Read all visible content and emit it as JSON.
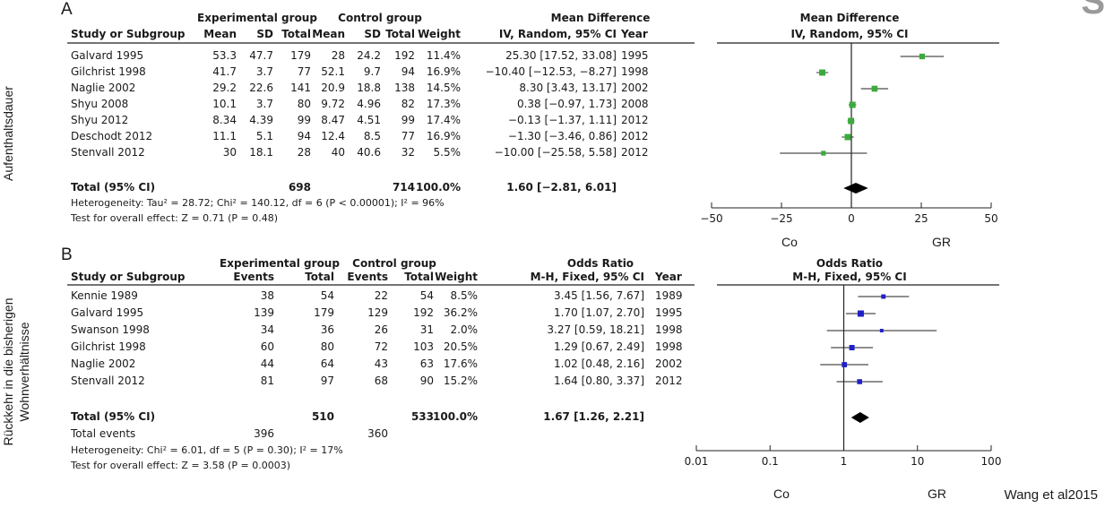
{
  "side_labels": {
    "a": "Aufenthaltsdauer",
    "b_line1": "Rückkehr in die bisherigen",
    "b_line2": "Wohnverhältnisse"
  },
  "citation": "Wang et al2015",
  "corner_glyph": "S",
  "colors": {
    "a_marker": "#3cab3c",
    "b_marker": "#2020c8",
    "line": "#222222"
  },
  "chart_data": [
    {
      "type": "forest",
      "panel": "A",
      "group_headers": {
        "experimental": "Experimental group",
        "control": "Control group",
        "effect": "Mean Difference",
        "plot": "Mean Difference"
      },
      "columns": [
        "Study or Subgroup",
        "Mean",
        "SD",
        "Total",
        "Mean",
        "SD",
        "Total",
        "Weight",
        "IV, Random, 95% CI",
        "Year"
      ],
      "plot_subheader": "IV, Random, 95% CI",
      "rows": [
        {
          "study": "Galvard 1995",
          "e_mean": "53.3",
          "e_sd": "47.7",
          "e_total": "179",
          "c_mean": "28",
          "c_sd": "24.2",
          "c_total": "192",
          "weight": "11.4%",
          "ci_text": "25.30 [17.52, 33.08]",
          "year": "1995",
          "est": 25.3,
          "lo": 17.52,
          "hi": 33.08
        },
        {
          "study": "Gilchrist 1998",
          "e_mean": "41.7",
          "e_sd": "3.7",
          "e_total": "77",
          "c_mean": "52.1",
          "c_sd": "9.7",
          "c_total": "94",
          "weight": "16.9%",
          "ci_text": "−10.40 [−12.53, −8.27]",
          "year": "1998",
          "est": -10.4,
          "lo": -12.53,
          "hi": -8.27
        },
        {
          "study": "Naglie 2002",
          "e_mean": "29.2",
          "e_sd": "22.6",
          "e_total": "141",
          "c_mean": "20.9",
          "c_sd": "18.8",
          "c_total": "138",
          "weight": "14.5%",
          "ci_text": "8.30 [3.43, 13.17]",
          "year": "2002",
          "est": 8.3,
          "lo": 3.43,
          "hi": 13.17
        },
        {
          "study": "Shyu 2008",
          "e_mean": "10.1",
          "e_sd": "3.7",
          "e_total": "80",
          "c_mean": "9.72",
          "c_sd": "4.96",
          "c_total": "82",
          "weight": "17.3%",
          "ci_text": "0.38 [−0.97, 1.73]",
          "year": "2008",
          "est": 0.38,
          "lo": -0.97,
          "hi": 1.73
        },
        {
          "study": "Shyu 2012",
          "e_mean": "8.34",
          "e_sd": "4.39",
          "e_total": "99",
          "c_mean": "8.47",
          "c_sd": "4.51",
          "c_total": "99",
          "weight": "17.4%",
          "ci_text": "−0.13 [−1.37, 1.11]",
          "year": "2012",
          "est": -0.13,
          "lo": -1.37,
          "hi": 1.11
        },
        {
          "study": "Deschodt 2012",
          "e_mean": "11.1",
          "e_sd": "5.1",
          "e_total": "94",
          "c_mean": "12.4",
          "c_sd": "8.5",
          "c_total": "77",
          "weight": "16.9%",
          "ci_text": "−1.30 [−3.46, 0.86]",
          "year": "2012",
          "est": -1.3,
          "lo": -3.46,
          "hi": 0.86
        },
        {
          "study": "Stenvall 2012",
          "e_mean": "30",
          "e_sd": "18.1",
          "e_total": "28",
          "c_mean": "40",
          "c_sd": "40.6",
          "c_total": "32",
          "weight": "5.5%",
          "ci_text": "−10.00 [−25.58, 5.58]",
          "year": "2012",
          "est": -10.0,
          "lo": -25.58,
          "hi": 5.58
        }
      ],
      "total": {
        "label": "Total (95% CI)",
        "e_total": "698",
        "c_total": "714",
        "weight": "100.0%",
        "ci_text": "1.60 [−2.81, 6.01]",
        "est": 1.6,
        "lo": -2.81,
        "hi": 6.01
      },
      "notes": [
        "Heterogeneity: Tau² = 28.72; Chi² = 140.12, df = 6 (P < 0.00001); I² = 96%",
        "Test for overall effect: Z = 0.71 (P = 0.48)"
      ],
      "axis": {
        "scale": "linear",
        "ticks": [
          -50,
          -25,
          0,
          25,
          50
        ],
        "tick_labels": [
          "−50",
          "−25",
          "0",
          "25",
          "50"
        ],
        "range": [
          -50,
          50
        ]
      },
      "direction_labels": {
        "left": "Co",
        "right": "GR"
      }
    },
    {
      "type": "forest",
      "panel": "B",
      "group_headers": {
        "experimental": "Experimental group",
        "control": "Control group",
        "effect": "Odds Ratio",
        "plot": "Odds Ratio"
      },
      "columns": [
        "Study or Subgroup",
        "Events",
        "Total",
        "Events",
        "Total",
        "Weight",
        "M-H, Fixed, 95% CI",
        "Year"
      ],
      "plot_subheader": "M-H, Fixed, 95% CI",
      "rows": [
        {
          "study": "Kennie 1989",
          "e_events": "38",
          "e_total": "54",
          "c_events": "22",
          "c_total": "54",
          "weight": "8.5%",
          "ci_text": "3.45 [1.56, 7.67]",
          "year": "1989",
          "est": 3.45,
          "lo": 1.56,
          "hi": 7.67
        },
        {
          "study": "Galvard 1995",
          "e_events": "139",
          "e_total": "179",
          "c_events": "129",
          "c_total": "192",
          "weight": "36.2%",
          "ci_text": "1.70 [1.07, 2.70]",
          "year": "1995",
          "est": 1.7,
          "lo": 1.07,
          "hi": 2.7
        },
        {
          "study": "Swanson 1998",
          "e_events": "34",
          "e_total": "36",
          "c_events": "26",
          "c_total": "31",
          "weight": "2.0%",
          "ci_text": "3.27 [0.59, 18.21]",
          "year": "1998",
          "est": 3.27,
          "lo": 0.59,
          "hi": 18.21
        },
        {
          "study": "Gilchrist 1998",
          "e_events": "60",
          "e_total": "80",
          "c_events": "72",
          "c_total": "103",
          "weight": "20.5%",
          "ci_text": "1.29 [0.67, 2.49]",
          "year": "1998",
          "est": 1.29,
          "lo": 0.67,
          "hi": 2.49
        },
        {
          "study": "Naglie 2002",
          "e_events": "44",
          "e_total": "64",
          "c_events": "43",
          "c_total": "63",
          "weight": "17.6%",
          "ci_text": "1.02 [0.48, 2.16]",
          "year": "2002",
          "est": 1.02,
          "lo": 0.48,
          "hi": 2.16
        },
        {
          "study": "Stenvall 2012",
          "e_events": "81",
          "e_total": "97",
          "c_events": "68",
          "c_total": "90",
          "weight": "15.2%",
          "ci_text": "1.64 [0.80, 3.37]",
          "year": "2012",
          "est": 1.64,
          "lo": 0.8,
          "hi": 3.37
        }
      ],
      "total": {
        "label": "Total (95% CI)",
        "e_total": "510",
        "c_total": "533",
        "weight": "100.0%",
        "ci_text": "1.67 [1.26, 2.21]",
        "est": 1.67,
        "lo": 1.26,
        "hi": 2.21
      },
      "total_events": {
        "label": "Total events",
        "e": "396",
        "c": "360"
      },
      "notes": [
        "Heterogeneity: Chi² = 6.01, df = 5 (P = 0.30); I² = 17%",
        "Test for overall effect: Z = 3.58 (P = 0.0003)"
      ],
      "axis": {
        "scale": "log",
        "ticks": [
          0.01,
          0.1,
          1,
          10,
          100
        ],
        "tick_labels": [
          "0.01",
          "0.1",
          "1",
          "10",
          "100"
        ],
        "range": [
          0.01,
          100
        ]
      },
      "direction_labels": {
        "left": "Co",
        "right": "GR"
      }
    }
  ]
}
